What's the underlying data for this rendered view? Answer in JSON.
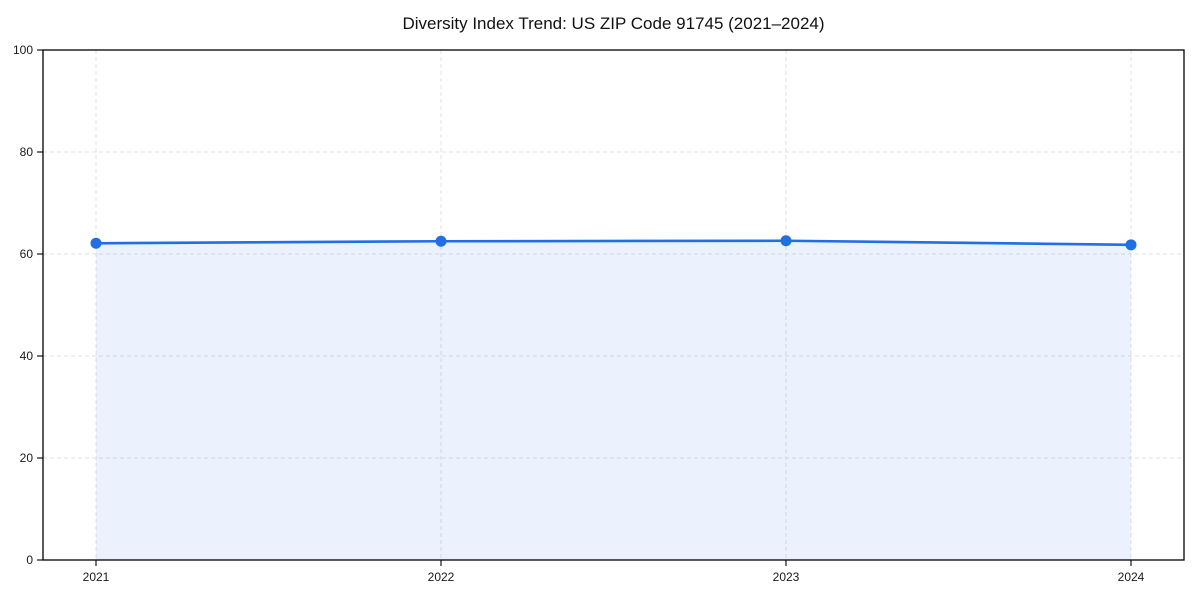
{
  "chart_data": {
    "type": "line",
    "title": "Diversity Index Trend: US ZIP Code 91745 (2021–2024)",
    "categories": [
      "2021",
      "2022",
      "2023",
      "2024"
    ],
    "series": [
      {
        "name": "Diversity Index",
        "values": [
          62.1,
          62.5,
          62.6,
          61.8
        ]
      }
    ],
    "xlabel": "",
    "ylabel": "",
    "ylim": [
      0,
      100
    ],
    "yticks": [
      0,
      20,
      40,
      60,
      80,
      100
    ],
    "grid": "dashed-both-axes",
    "legend": "none",
    "marker": "circle",
    "area_fill": true,
    "colors": {
      "line": "#1f6fe6",
      "marker": "#1f6fe6",
      "area_opacity": 0.09,
      "gridline": "#e1e1e1",
      "spine": "#000000",
      "title_text": "#111111",
      "tick_text": "#1a1a1a",
      "background": "#ffffff"
    }
  }
}
